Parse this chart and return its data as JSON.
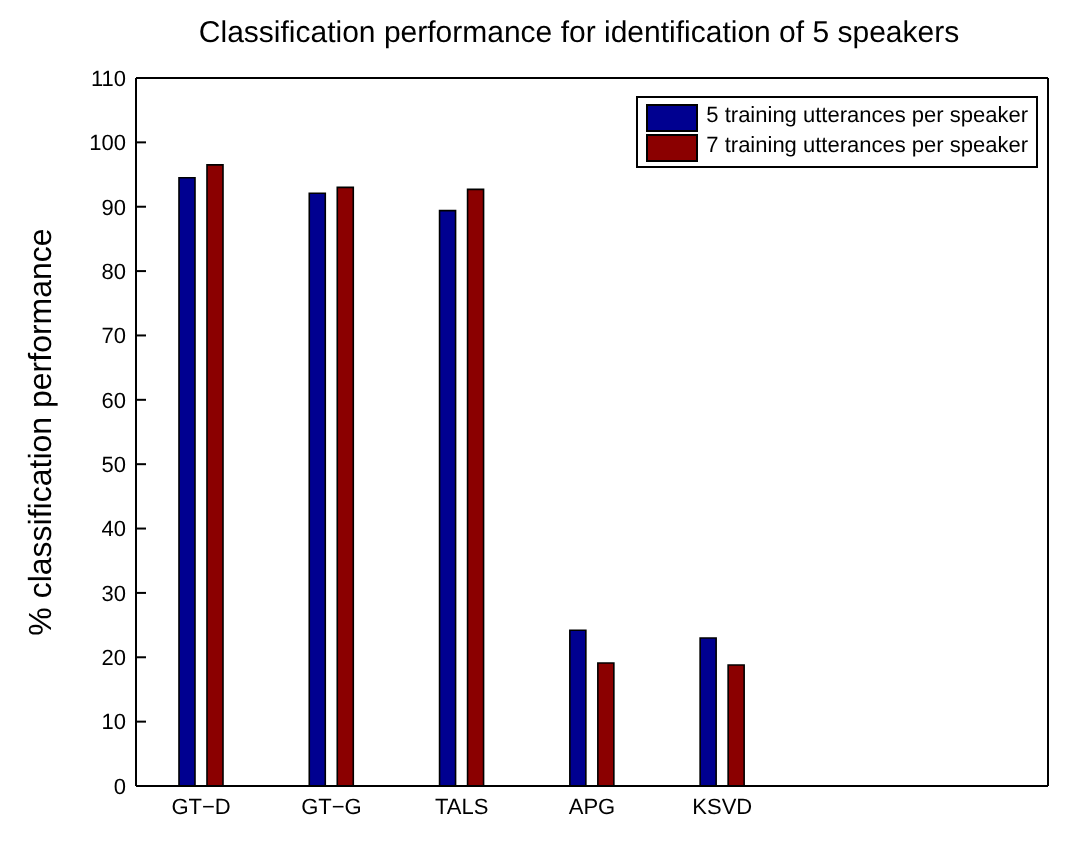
{
  "chart_data": {
    "type": "bar",
    "title": "Classification performance for identification of 5 speakers",
    "ylabel": "% classification performance",
    "categories": [
      "GT−D",
      "GT−G",
      "TALS",
      "APG",
      "KSVD",
      null,
      null
    ],
    "series": [
      {
        "name": "5 training utterances per speaker",
        "color": "#000090",
        "values": [
          94.5,
          92.1,
          89.4,
          24.2,
          23.0,
          null,
          null
        ]
      },
      {
        "name": "7 training utterances per speaker",
        "color": "#8b0000",
        "values": [
          96.5,
          93.0,
          92.7,
          19.1,
          18.8,
          null,
          null
        ]
      }
    ],
    "ylim": [
      0,
      110
    ],
    "yticks": [
      0,
      10,
      20,
      30,
      40,
      50,
      60,
      70,
      80,
      90,
      100,
      110
    ],
    "grid": false,
    "legend": "top right"
  }
}
